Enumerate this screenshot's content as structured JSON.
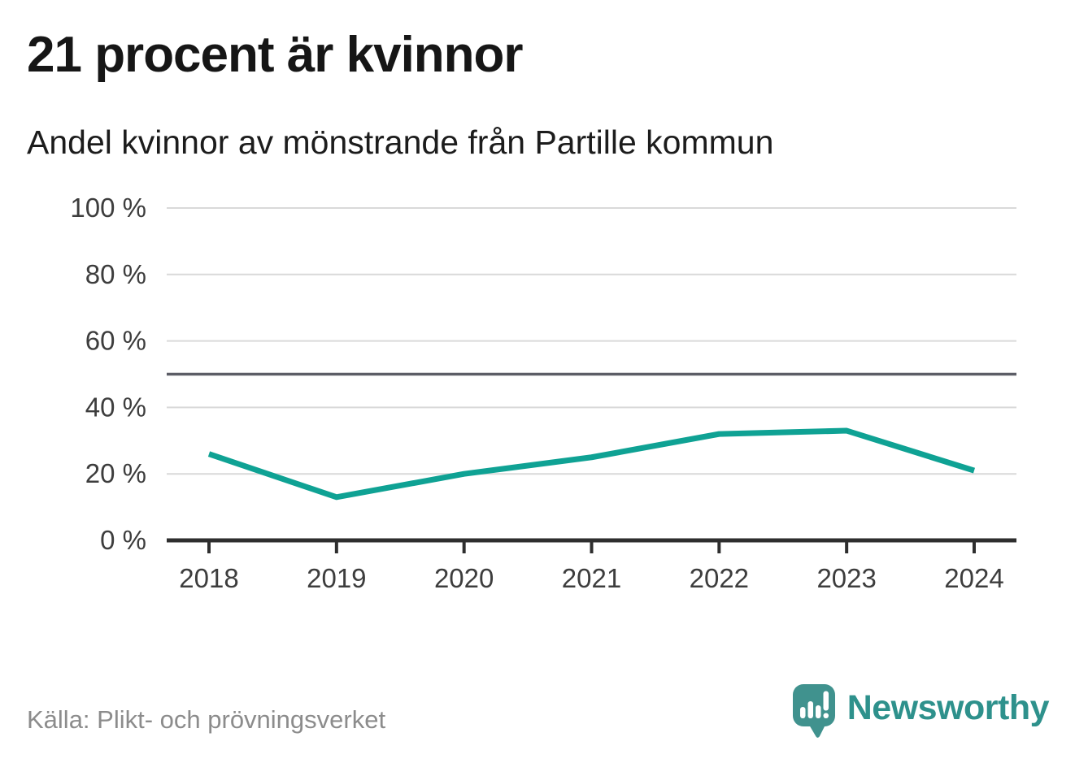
{
  "header": {
    "title": "21 procent är kvinnor",
    "subtitle": "Andel kvinnor av mönstrande från Partille kommun"
  },
  "footer": {
    "source": "Källa: Plikt- och prövningsverket",
    "brand_name": "Newsworthy"
  },
  "colors": {
    "accent_line": "#0fa294",
    "grid": "#d9d9d9",
    "reference_line": "#5c5d66",
    "axis": "#2e2e2e",
    "axis_text": "#3d3d3d",
    "title_text": "#161616",
    "muted_text": "#8c8c8c",
    "brand_teal": "#2e918c",
    "brand_icon_teal": "#40928e"
  },
  "chart_data": {
    "type": "line",
    "title": "21 procent är kvinnor",
    "subtitle": "Andel kvinnor av mönstrande från Partille kommun",
    "x": [
      2018,
      2019,
      2020,
      2021,
      2022,
      2023,
      2024
    ],
    "series": [
      {
        "name": "Andel kvinnor av mönstrande",
        "color": "#0fa294",
        "values": [
          26,
          13,
          20,
          25,
          32,
          33,
          21
        ]
      }
    ],
    "unit": "%",
    "xlabel": "",
    "ylabel": "",
    "ylim": [
      0,
      100
    ],
    "yticks": [
      0,
      20,
      40,
      60,
      80,
      100
    ],
    "ytick_suffix": " %",
    "reference_line_y": 50,
    "grid": true,
    "legend": false,
    "source": "Källa: Plikt- och prövningsverket"
  }
}
